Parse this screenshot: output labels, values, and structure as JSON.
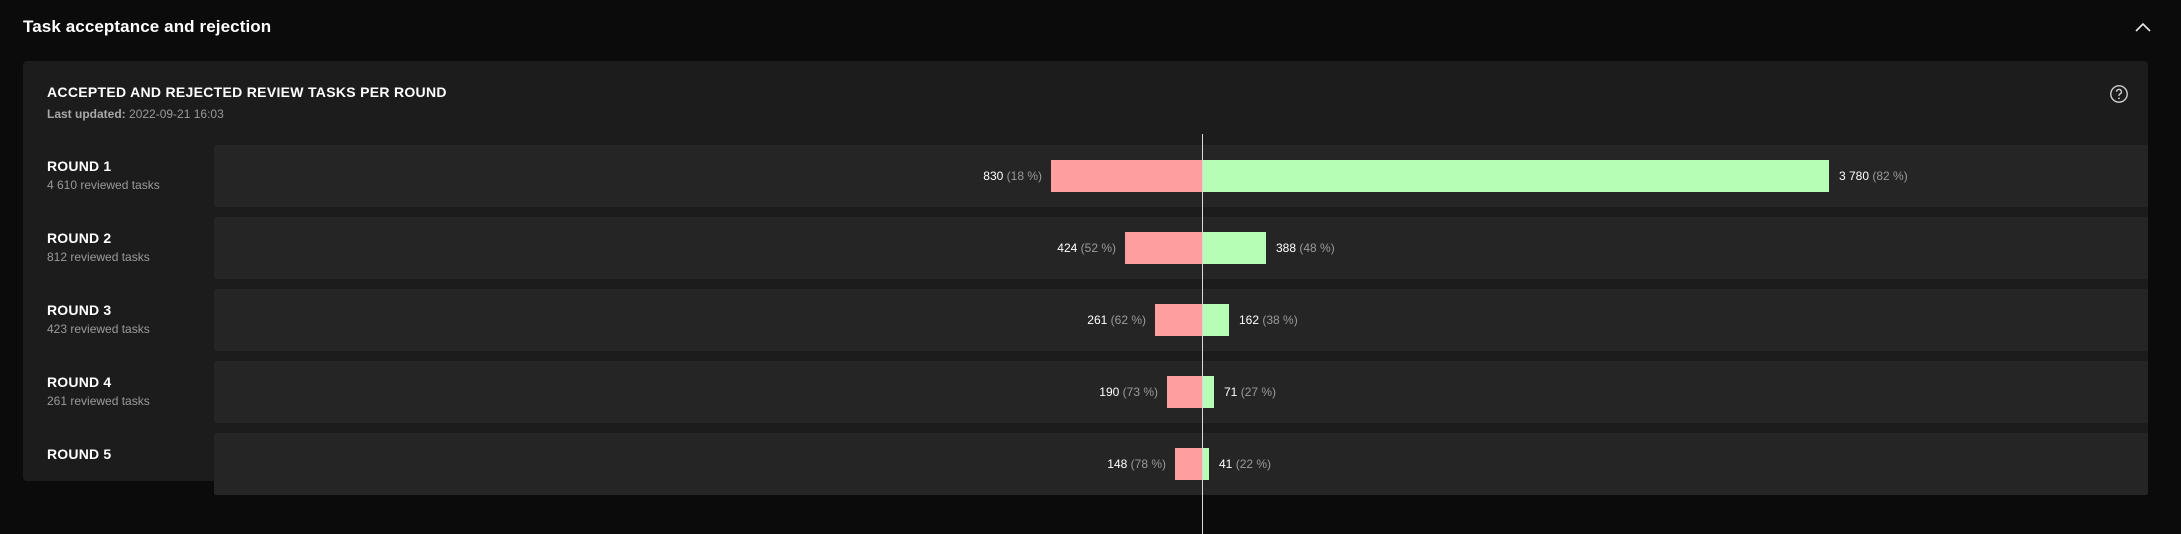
{
  "section": {
    "title": "Task acceptance and rejection",
    "collapse_icon": "chevron-up-icon"
  },
  "card": {
    "title": "ACCEPTED AND REJECTED REVIEW TASKS PER ROUND",
    "updated_label": "Last updated:",
    "updated_value": "2022-09-21 16:03",
    "help_icon": "help-circle-icon"
  },
  "colors": {
    "rejected": "#ff9e9e",
    "accepted": "#b6fdb6",
    "background": "#0b0b0b",
    "card": "#1c1c1c",
    "track": "#252525"
  },
  "chart_data": {
    "type": "bar",
    "orientation": "horizontal-diverging",
    "rounds": [
      {
        "label": "ROUND 1",
        "sub": "4 610 reviewed tasks",
        "rejected": 830,
        "rejected_text": "830",
        "rejected_pct": "(18 %)",
        "accepted": 3780,
        "accepted_text": "3 780",
        "accepted_pct": "(82 %)"
      },
      {
        "label": "ROUND 2",
        "sub": "812 reviewed tasks",
        "rejected": 424,
        "rejected_text": "424",
        "rejected_pct": "(52 %)",
        "accepted": 388,
        "accepted_text": "388",
        "accepted_pct": "(48 %)"
      },
      {
        "label": "ROUND 3",
        "sub": "423 reviewed tasks",
        "rejected": 261,
        "rejected_text": "261",
        "rejected_pct": "(62 %)",
        "accepted": 162,
        "accepted_text": "162",
        "accepted_pct": "(38 %)"
      },
      {
        "label": "ROUND 4",
        "sub": "261 reviewed tasks",
        "rejected": 190,
        "rejected_text": "190",
        "rejected_pct": "(73 %)",
        "accepted": 71,
        "accepted_text": "71",
        "accepted_pct": "(27 %)"
      },
      {
        "label": "ROUND 5",
        "sub": "",
        "rejected": 148,
        "rejected_text": "148",
        "rejected_pct": "(78 %)",
        "accepted": 41,
        "accepted_text": "41",
        "accepted_pct": "(22 %)"
      }
    ]
  }
}
